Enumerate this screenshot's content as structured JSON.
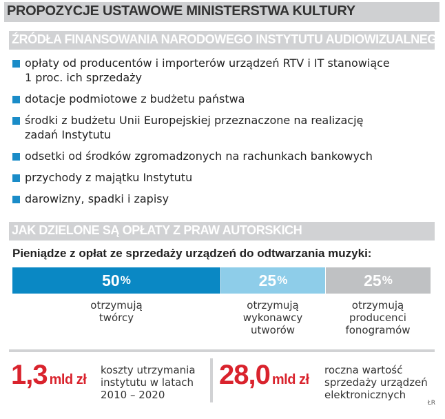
{
  "header": {
    "title": "PROPOZYCJE USTAWOWE MINISTERSTWA KULTURY"
  },
  "funding": {
    "heading": "ŹRÓDŁA FINANSOWANIA NARODOWEGO INSTYTUTU AUDIOWIZUALNEGO",
    "items": [
      {
        "line1": "opłaty od producentów i importerów urządzeń RTV i IT stanowiące",
        "line2": "1 proc. ich sprzedaży"
      },
      {
        "line1": "dotacje podmiotowe z budżetu państwa"
      },
      {
        "line1": "środki z budżetu Unii Europejskiej przeznaczone na realizację",
        "line2": "zadań Instytutu"
      },
      {
        "line1": "odsetki od środków zgromadzonych na rachunkach bankowych"
      },
      {
        "line1": "przychody z majątku Instytutu"
      },
      {
        "line1": "darowizny, spadki i zapisy"
      }
    ]
  },
  "royalties": {
    "heading": "JAK DZIELONE SĄ OPŁATY Z PRAW AUTORSKICH",
    "subtitle": "Pieniądze z opłat ze sprzedaży urządzeń do odtwarzania muzyki:",
    "segments": [
      {
        "value": "50",
        "unit": "%",
        "share": 50,
        "color": "#0a88c4",
        "label_lines": [
          "otrzymują",
          "twórcy"
        ]
      },
      {
        "value": "25",
        "unit": "%",
        "share": 25,
        "color": "#8ecde9",
        "label_lines": [
          "otrzymują",
          "wykonawcy",
          "utworów"
        ]
      },
      {
        "value": "25",
        "unit": "%",
        "share": 25,
        "color": "#bfc1c3",
        "label_lines": [
          "otrzymują",
          "producenci",
          "fonogramów"
        ]
      }
    ]
  },
  "stats": [
    {
      "value": "1,3",
      "unit": "mld zł",
      "desc_lines": [
        "koszty utrzymania",
        "instytutu w latach",
        "2010 – 2020"
      ]
    },
    {
      "value": "28,0",
      "unit": "mld zł",
      "desc_lines": [
        "roczna wartość",
        "sprzedaży urządzeń",
        "elektronicznych"
      ]
    }
  ],
  "credit": "ŁR",
  "colors": {
    "accent_blue": "#1a8cc8",
    "stat_red": "#d9232d",
    "bar_gray": "#d1d2d4"
  }
}
